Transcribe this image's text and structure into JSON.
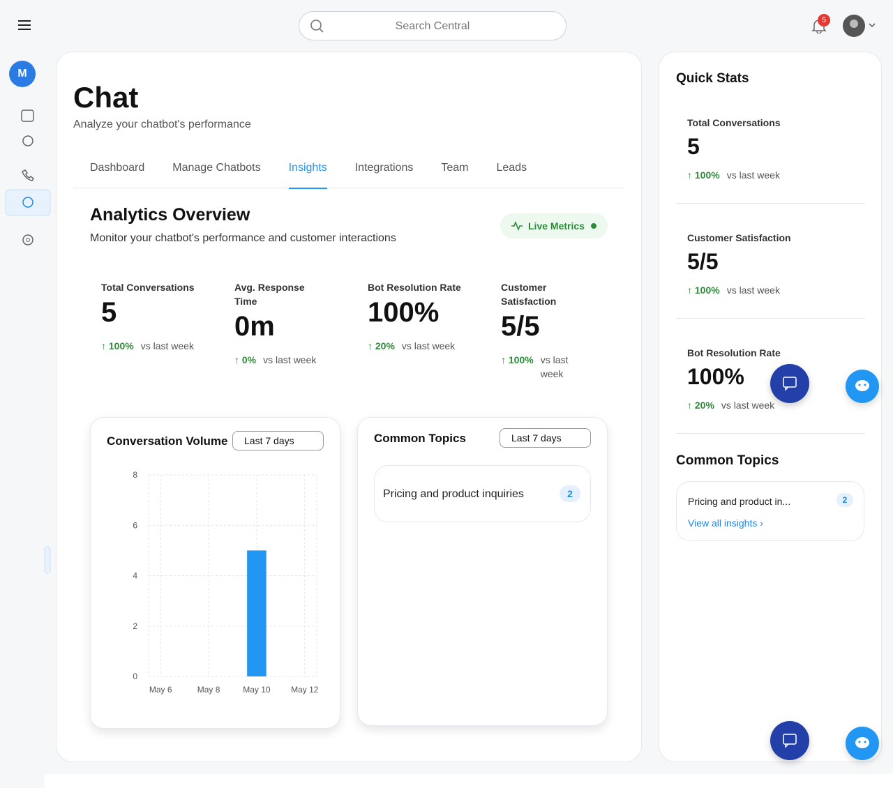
{
  "header": {
    "search_placeholder": "Search Central",
    "notification_count": "5"
  },
  "sidebar": {
    "avatar": "M"
  },
  "page": {
    "title": "Chat",
    "subtitle": "Analyze your chatbot's performance"
  },
  "tabs": {
    "items": [
      "Dashboard",
      "Manage Chatbots",
      "Insights",
      "Integrations",
      "Team",
      "Leads"
    ],
    "active": 2
  },
  "overview": {
    "title": "Analytics Overview",
    "subtitle": "Monitor your chatbot's performance and customer interactions",
    "badge": "Live Metrics"
  },
  "metrics": [
    {
      "label": "Total Conversations",
      "value": "5",
      "change": "100%",
      "compare": "vs last week"
    },
    {
      "label": "Avg. Response Time",
      "value": "0m",
      "change": "0%",
      "compare": "vs last week"
    },
    {
      "label": "Bot Resolution Rate",
      "value": "100%",
      "change": "20%",
      "compare": "vs last week"
    },
    {
      "label": "Customer Satisfaction",
      "value": "5/5",
      "change": "100%",
      "compare": "vs last week"
    }
  ],
  "conversation_volume_filter": "Last 7 days",
  "chart_data": {
    "type": "bar",
    "title": "Conversation Volume",
    "categories": [
      "May 6",
      null,
      "May 8",
      null,
      "May 10",
      null,
      "May 12"
    ],
    "values": [
      0,
      0,
      0,
      0,
      5,
      0,
      0
    ],
    "color": "#2196f3",
    "ylim": [
      0,
      8
    ],
    "yticks": [
      0,
      2,
      4,
      6,
      8
    ],
    "grid": true
  },
  "common_topics": {
    "title": "Common Topics",
    "filter": "Last 7 days",
    "items": [
      {
        "label": "Pricing and product inquiries",
        "count": "2"
      }
    ]
  },
  "quick_stats": {
    "title": "Quick Stats",
    "items": [
      {
        "label": "Total Conversations",
        "value": "5",
        "change": "100%",
        "compare": "vs last week"
      },
      {
        "label": "Customer Satisfaction",
        "value": "5/5",
        "change": "100%",
        "compare": "vs last week"
      },
      {
        "label": "Bot Resolution Rate",
        "value": "100%",
        "change": "20%",
        "compare": "vs last week"
      }
    ]
  },
  "sidebar_topics": {
    "title": "Common Topics",
    "items": [
      {
        "label": "Pricing and product in...",
        "count": "2"
      }
    ],
    "link": "View all insights"
  }
}
